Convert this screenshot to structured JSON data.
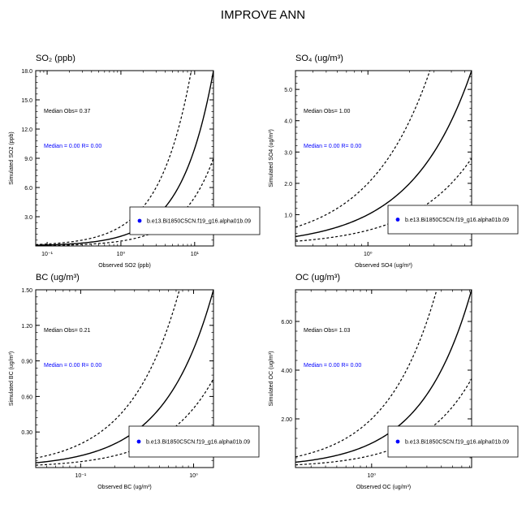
{
  "figure": {
    "title": "IMPROVE ANN"
  },
  "chart_data": [
    {
      "type": "scatter",
      "title": "SO₂ (ppb)",
      "xlabel": "Observed SO2 (ppb)",
      "ylabel": "Simulated SO2 (ppb)",
      "xscale": "log",
      "xlim": [
        0.07,
        18
      ],
      "ylim": [
        0,
        18
      ],
      "xticks": [
        {
          "value": 0.1,
          "label": "10⁻¹"
        },
        {
          "value": 1,
          "label": "10⁰"
        },
        {
          "value": 10,
          "label": "10¹"
        }
      ],
      "yticks": [
        {
          "value": 3,
          "label": "3.0"
        },
        {
          "value": 6,
          "label": "6.0"
        },
        {
          "value": 9,
          "label": "9.0"
        },
        {
          "value": 12,
          "label": "12.0"
        },
        {
          "value": 15,
          "label": "15.0"
        },
        {
          "value": 18,
          "label": "18.0"
        }
      ],
      "median_obs": "Median Obs= 0.37",
      "median_sim": "Median = 0.00 R= 0.00",
      "legend": {
        "marker_color": "#0000ff",
        "label": "b.e13.Bi1850C5CN.f19_g16.alpha01b.09",
        "position": "lower-right"
      },
      "reference_lines": [
        "1:1",
        "2:1",
        "1:2"
      ],
      "series": [
        {
          "points": []
        }
      ]
    },
    {
      "type": "scatter",
      "title": "SO₄ (ug/m³)",
      "xlabel": "Observed SO4 (ug/m³)",
      "ylabel": "Simulated SO4 (ug/m³)",
      "xscale": "log",
      "xlim": [
        0.3,
        5.6
      ],
      "ylim": [
        0,
        5.6
      ],
      "xticks": [
        {
          "value": 1,
          "label": "10⁰"
        }
      ],
      "yticks": [
        {
          "value": 1,
          "label": "1.0"
        },
        {
          "value": 2,
          "label": "2.0"
        },
        {
          "value": 3,
          "label": "3.0"
        },
        {
          "value": 4,
          "label": "4.0"
        },
        {
          "value": 5,
          "label": "5.0"
        }
      ],
      "median_obs": "Median Obs= 1.00",
      "median_sim": "Median = 0.00 R= 0.00",
      "legend": {
        "marker_color": "#0000ff",
        "label": "b.e13.Bi1850C5CN.f19_g16.alpha01b.09",
        "position": "lower-right"
      },
      "reference_lines": [
        "1:1",
        "2:1",
        "1:2"
      ],
      "series": [
        {
          "points": []
        }
      ]
    },
    {
      "type": "scatter",
      "title": "BC (ug/m³)",
      "xlabel": "Observed BC (ug/m³)",
      "ylabel": "Simulated BC (ug/m³)",
      "xscale": "log",
      "xlim": [
        0.04,
        1.5
      ],
      "ylim": [
        0,
        1.5
      ],
      "xticks": [
        {
          "value": 0.1,
          "label": "10⁻¹"
        },
        {
          "value": 1,
          "label": "10⁰"
        }
      ],
      "yticks": [
        {
          "value": 0.3,
          "label": "0.30"
        },
        {
          "value": 0.6,
          "label": "0.60"
        },
        {
          "value": 0.9,
          "label": "0.90"
        },
        {
          "value": 1.2,
          "label": "1.20"
        },
        {
          "value": 1.5,
          "label": "1.50"
        }
      ],
      "median_obs": "Median Obs= 0.21",
      "median_sim": "Median = 0.00 R= 0.00",
      "legend": {
        "marker_color": "#0000ff",
        "label": "b.e13.Bi1850C5CN.f19_g16.alpha01b.09",
        "position": "lower-right"
      },
      "reference_lines": [
        "1:1",
        "2:1",
        "1:2"
      ],
      "series": [
        {
          "points": []
        }
      ]
    },
    {
      "type": "scatter",
      "title": "OC (ug/m³)",
      "xlabel": "Observed OC (ug/m³)",
      "ylabel": "Simulated OC (ug/m³)",
      "xscale": "log",
      "xlim": [
        0.22,
        7.3
      ],
      "ylim": [
        0,
        7.3
      ],
      "xticks": [
        {
          "value": 1,
          "label": "10⁰"
        }
      ],
      "yticks": [
        {
          "value": 2,
          "label": "2.00"
        },
        {
          "value": 4,
          "label": "4.00"
        },
        {
          "value": 6,
          "label": "6.00"
        }
      ],
      "median_obs": "Median Obs= 1.03",
      "median_sim": "Median = 0.00 R= 0.00",
      "legend": {
        "marker_color": "#0000ff",
        "label": "b.e13.Bi1850C5CN.f19_g16.alpha01b.09",
        "position": "lower-right"
      },
      "reference_lines": [
        "1:1",
        "2:1",
        "1:2"
      ],
      "series": [
        {
          "points": []
        }
      ]
    }
  ]
}
